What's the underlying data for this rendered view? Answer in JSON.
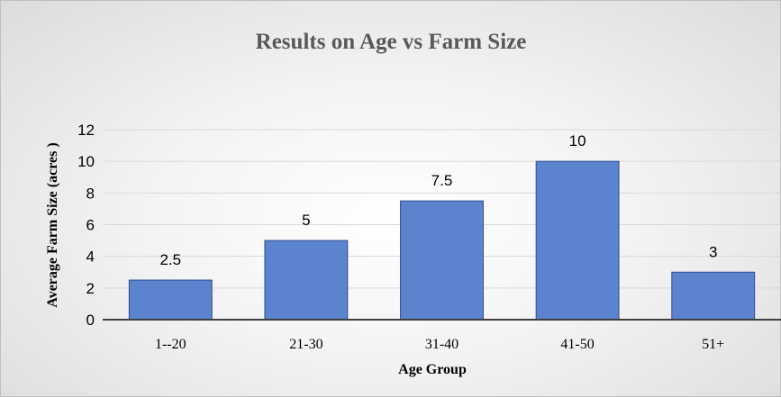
{
  "chart_data": {
    "type": "bar",
    "title": "Results on Age vs Farm Size",
    "xlabel": "Age Group",
    "ylabel": "Average Farm Size (acres )",
    "categories": [
      "1--20",
      "21-30",
      "31-40",
      "41-50",
      "51+"
    ],
    "values": [
      2.5,
      5,
      7.5,
      10,
      3
    ],
    "data_labels": [
      "2.5",
      "5",
      "7.5",
      "10",
      "3"
    ],
    "ylim": [
      0,
      12
    ],
    "yticks": [
      0,
      2,
      4,
      6,
      8,
      10,
      12
    ],
    "ytick_labels": [
      "0",
      "2",
      "4",
      "6",
      "8",
      "10",
      "12"
    ],
    "grid": true,
    "legend": "none",
    "colors": {
      "bar_fill": "#5B83CE",
      "bar_stroke": "#2F4E8C",
      "grid": "#d9d9d9",
      "axis": "#404040"
    }
  }
}
